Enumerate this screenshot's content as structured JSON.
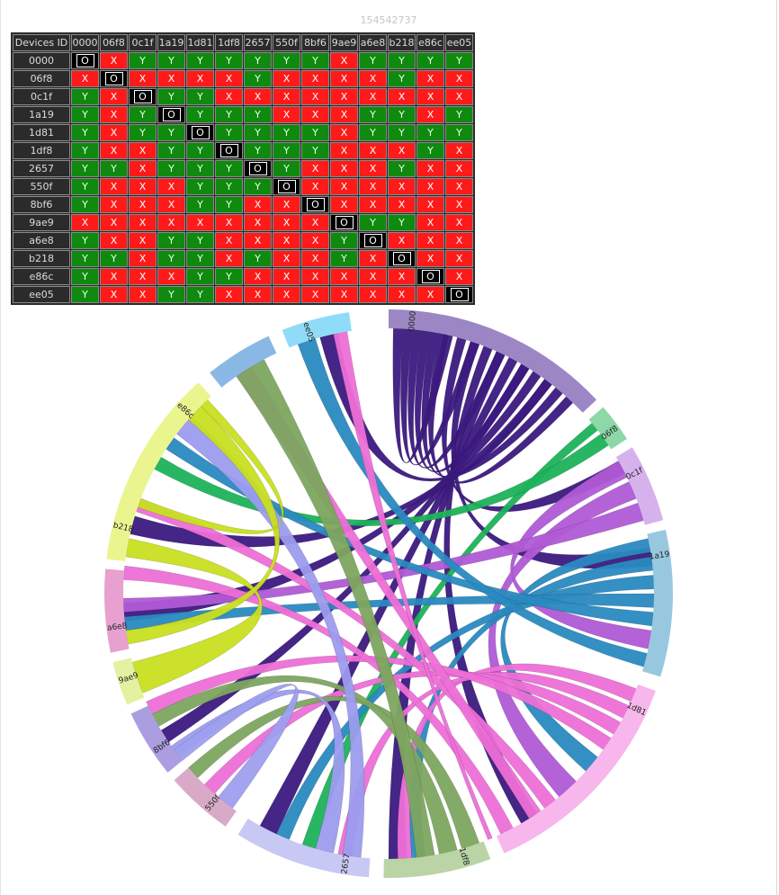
{
  "page_id": "154542737",
  "matrix": {
    "corner_label": "Devices ID",
    "devices": [
      "0000",
      "06f8",
      "0c1f",
      "1a19",
      "1d81",
      "1df8",
      "2657",
      "550f",
      "8bf6",
      "9ae9",
      "a6e8",
      "b218",
      "e86c",
      "ee05"
    ],
    "rows": [
      [
        "O",
        "X",
        "Y",
        "Y",
        "Y",
        "Y",
        "Y",
        "Y",
        "Y",
        "X",
        "Y",
        "Y",
        "Y",
        "Y"
      ],
      [
        "X",
        "O",
        "X",
        "X",
        "X",
        "X",
        "Y",
        "X",
        "X",
        "X",
        "X",
        "Y",
        "X",
        "X"
      ],
      [
        "Y",
        "X",
        "O",
        "Y",
        "Y",
        "X",
        "X",
        "X",
        "X",
        "X",
        "X",
        "X",
        "X",
        "X"
      ],
      [
        "Y",
        "X",
        "Y",
        "O",
        "Y",
        "Y",
        "Y",
        "X",
        "X",
        "X",
        "Y",
        "Y",
        "X",
        "Y"
      ],
      [
        "Y",
        "X",
        "Y",
        "Y",
        "O",
        "Y",
        "Y",
        "Y",
        "Y",
        "X",
        "Y",
        "Y",
        "Y",
        "Y"
      ],
      [
        "Y",
        "X",
        "X",
        "Y",
        "Y",
        "O",
        "Y",
        "Y",
        "Y",
        "X",
        "X",
        "X",
        "Y",
        "X"
      ],
      [
        "Y",
        "Y",
        "X",
        "Y",
        "Y",
        "Y",
        "O",
        "Y",
        "X",
        "X",
        "X",
        "Y",
        "X",
        "X"
      ],
      [
        "Y",
        "X",
        "X",
        "X",
        "Y",
        "Y",
        "Y",
        "O",
        "X",
        "X",
        "X",
        "X",
        "X",
        "X"
      ],
      [
        "Y",
        "X",
        "X",
        "X",
        "Y",
        "Y",
        "X",
        "X",
        "O",
        "X",
        "X",
        "X",
        "X",
        "X"
      ],
      [
        "X",
        "X",
        "X",
        "X",
        "X",
        "X",
        "X",
        "X",
        "X",
        "O",
        "Y",
        "Y",
        "X",
        "X"
      ],
      [
        "Y",
        "X",
        "X",
        "Y",
        "Y",
        "X",
        "X",
        "X",
        "X",
        "Y",
        "O",
        "X",
        "X",
        "X"
      ],
      [
        "Y",
        "Y",
        "X",
        "Y",
        "Y",
        "X",
        "Y",
        "X",
        "X",
        "Y",
        "X",
        "O",
        "X",
        "X"
      ],
      [
        "Y",
        "X",
        "X",
        "X",
        "Y",
        "Y",
        "X",
        "X",
        "X",
        "X",
        "X",
        "X",
        "O",
        "X"
      ],
      [
        "Y",
        "X",
        "X",
        "Y",
        "Y",
        "X",
        "X",
        "X",
        "X",
        "X",
        "X",
        "X",
        "X",
        "O"
      ]
    ]
  },
  "chord": {
    "ribbon_colors": {
      "0000": "#3c1a80",
      "06f8": "#1db35a",
      "0c1f": "#b05ad6",
      "1a19": "#2a8ac0",
      "1d81": "#ee6fd8",
      "1df8": "#7ea660",
      "2657": "#9c9cf0",
      "550f": "#9f9ff0",
      "8bf6": "#7ea660",
      "9ae9": "#c9e020",
      "a6e8": "#c9e020",
      "b218": "#c9e020",
      "e86c": "#9c9cf0",
      "ee05": "#2a8ac0"
    },
    "arc_colors": {
      "0000": "#9c87c4",
      "06f8": "#8cd8a8",
      "0c1f": "#d6b2ec",
      "1a19": "#98c8e0",
      "1d81": "#f7b6ec",
      "1df8": "#bad4a6",
      "2657": "#c8c8f4",
      "550f": "#d8aac8",
      "8bf6": "#ab9ee0",
      "9ae9": "#e2f2a0",
      "a6e8": "#e8a0d0",
      "b218": "#eaf590",
      "e86c": "#eaf590",
      "ee05": "#90dcf8",
      "unlabeled": "#8ab8e4"
    }
  }
}
